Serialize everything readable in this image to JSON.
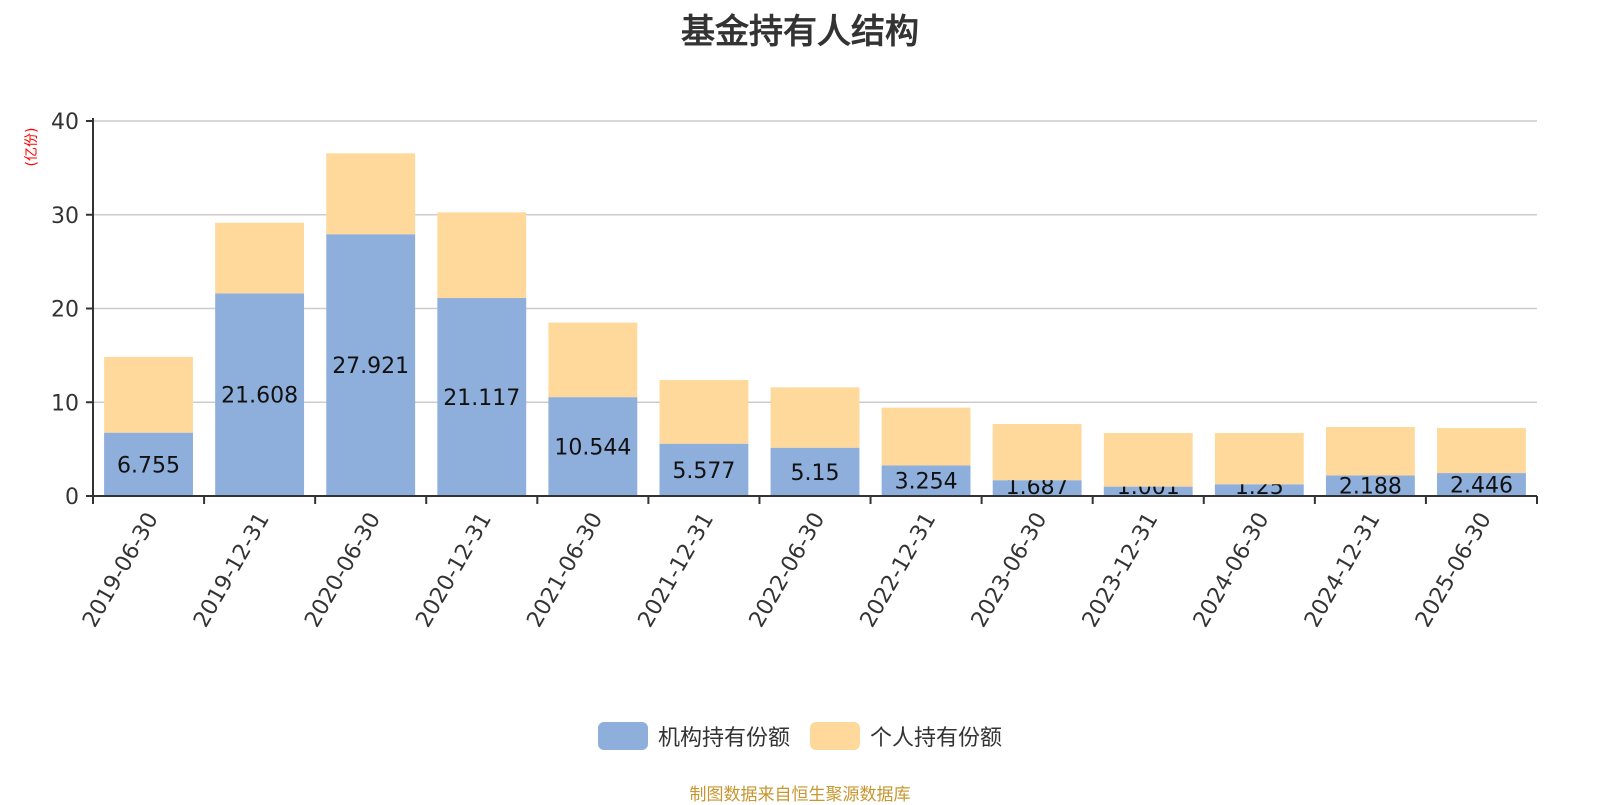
{
  "title": "基金持有人结构",
  "y_unit": "(亿份)",
  "legend": [
    {
      "label": "机构持有份额",
      "color": "#8eaedb"
    },
    {
      "label": "个人持有份额",
      "color": "#fed99b"
    }
  ],
  "source": "制图数据来自恒生聚源数据库",
  "chart_data": {
    "type": "bar",
    "stacked": true,
    "title": "基金持有人结构",
    "xlabel": "",
    "ylabel": "(亿份)",
    "ylim": [
      0,
      40
    ],
    "yticks": [
      0,
      10,
      20,
      30,
      40
    ],
    "grid": true,
    "legend_position": "bottom",
    "categories": [
      "2019-06-30",
      "2019-12-31",
      "2020-06-30",
      "2020-12-31",
      "2021-06-30",
      "2021-12-31",
      "2022-06-30",
      "2022-12-31",
      "2023-06-30",
      "2023-12-31",
      "2024-06-30",
      "2024-12-31",
      "2025-06-30"
    ],
    "series": [
      {
        "name": "机构持有份额",
        "color": "#8eaedb",
        "values": [
          6.755,
          21.608,
          27.921,
          21.117,
          10.544,
          5.577,
          5.15,
          3.254,
          1.687,
          1.001,
          1.25,
          2.188,
          2.446
        ],
        "labels_shown": true
      },
      {
        "name": "个人持有份额",
        "color": "#fed99b",
        "values": [
          8.08,
          7.54,
          8.63,
          9.14,
          7.95,
          6.79,
          6.44,
          6.17,
          5.99,
          5.72,
          5.47,
          5.17,
          4.8
        ],
        "labels_shown": false
      }
    ]
  }
}
